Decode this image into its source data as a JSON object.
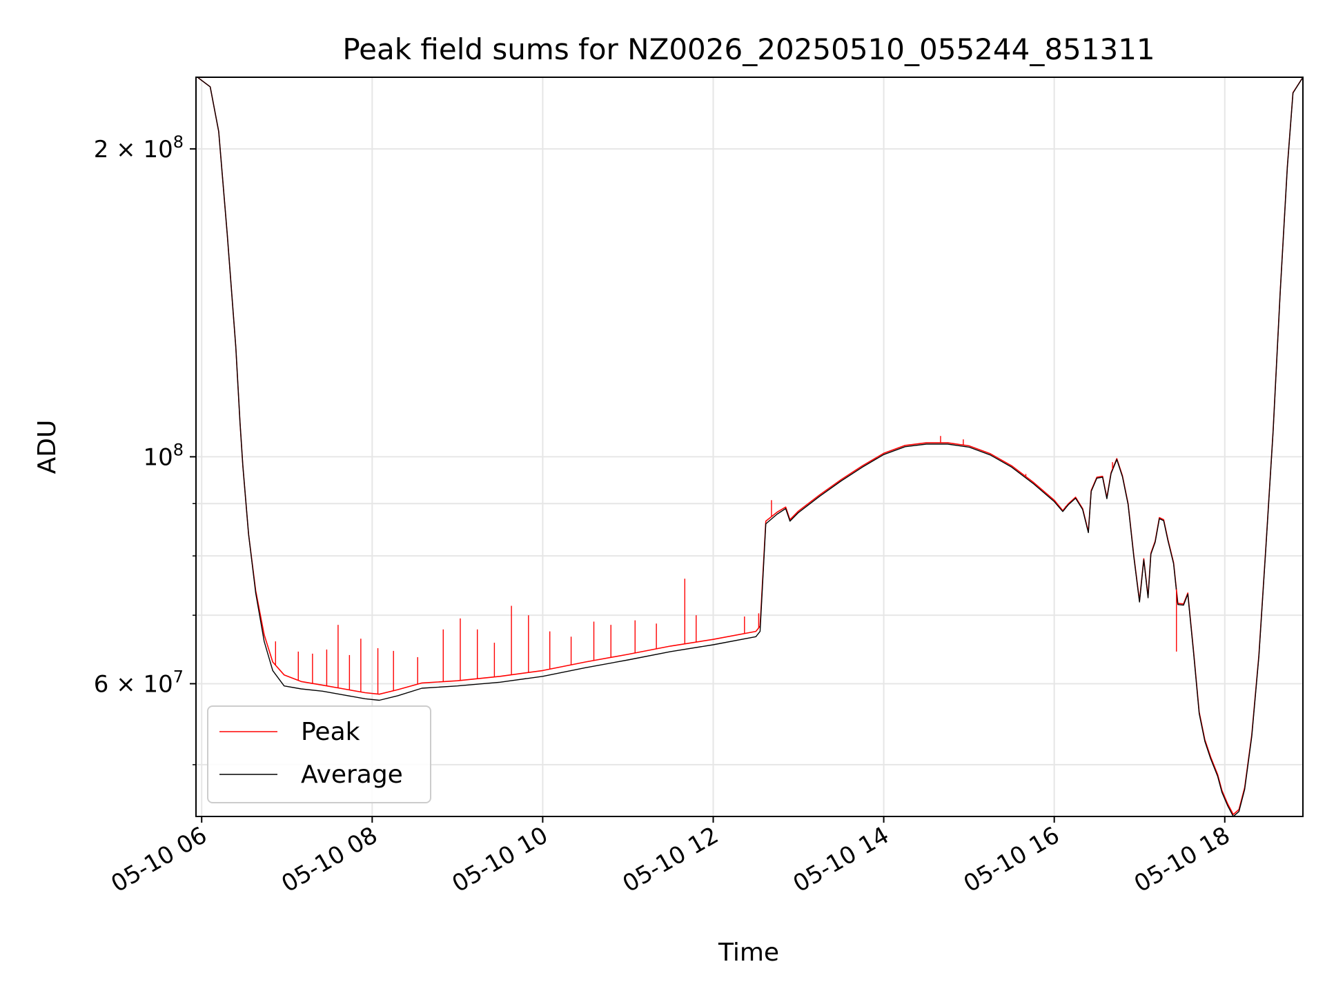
{
  "chart_data": {
    "type": "line",
    "title": "Peak field sums for NZ0026_20250510_055244_851311",
    "xlabel": "Time",
    "ylabel": "ADU",
    "x_ticks": [
      "05-10 06",
      "05-10 08",
      "05-10 10",
      "05-10 12",
      "05-10 14",
      "05-10 16",
      "05-10 18"
    ],
    "y_ticks": [
      {
        "value": 60000000,
        "label_base": "6 × 10",
        "label_exp": "7"
      },
      {
        "value": 100000000,
        "label_base": "10",
        "label_exp": "8"
      },
      {
        "value": 200000000,
        "label_base": "2 × 10",
        "label_exp": "8"
      }
    ],
    "y_scale": "log",
    "xlim": [
      "2025-05-10 05:56",
      "2025-05-10 18:55"
    ],
    "ylim": [
      44500000,
      235000000
    ],
    "grid": true,
    "legend_position": "lower-left",
    "series": [
      {
        "name": "Peak",
        "color": "#ff0000",
        "points": [
          [
            "05:57",
            235000000
          ],
          [
            "06:06",
            230000000
          ],
          [
            "06:12",
            208000000
          ],
          [
            "06:18",
            165000000
          ],
          [
            "06:24",
            128000000
          ],
          [
            "06:27",
            108000000
          ],
          [
            "06:29",
            98000000
          ],
          [
            "06:33",
            84000000
          ],
          [
            "06:38",
            74000000
          ],
          [
            "06:44",
            67000000
          ],
          [
            "06:50",
            63000000
          ],
          [
            "06:58",
            61200000
          ],
          [
            "07:10",
            60300000
          ],
          [
            "07:25",
            59800000
          ],
          [
            "07:40",
            59300000
          ],
          [
            "07:55",
            58800000
          ],
          [
            "08:05",
            58600000
          ],
          [
            "08:18",
            59200000
          ],
          [
            "08:35",
            60100000
          ],
          [
            "09:00",
            60400000
          ],
          [
            "09:30",
            61000000
          ],
          [
            "10:00",
            61800000
          ],
          [
            "10:30",
            63000000
          ],
          [
            "11:00",
            64100000
          ],
          [
            "11:30",
            65300000
          ],
          [
            "12:00",
            66300000
          ],
          [
            "12:30",
            67500000
          ],
          [
            "12:33",
            68300000
          ],
          [
            "12:37",
            86500000
          ],
          [
            "12:45",
            88300000
          ],
          [
            "12:51",
            89300000
          ],
          [
            "12:54",
            86800000
          ],
          [
            "13:00",
            88500000
          ],
          [
            "13:15",
            91800000
          ],
          [
            "13:30",
            95000000
          ],
          [
            "13:45",
            98000000
          ],
          [
            "14:00",
            100800000
          ],
          [
            "14:15",
            102600000
          ],
          [
            "14:30",
            103200000
          ],
          [
            "14:45",
            103200000
          ],
          [
            "15:00",
            102500000
          ],
          [
            "15:15",
            100700000
          ],
          [
            "15:30",
            98000000
          ],
          [
            "15:45",
            94500000
          ],
          [
            "16:00",
            90700000
          ],
          [
            "16:06",
            88600000
          ],
          [
            "16:10",
            90000000
          ],
          [
            "16:15",
            91300000
          ],
          [
            "16:20",
            89000000
          ],
          [
            "16:24",
            84500000
          ],
          [
            "16:26",
            92700000
          ],
          [
            "16:30",
            95500000
          ],
          [
            "16:34",
            95700000
          ],
          [
            "16:37",
            91200000
          ],
          [
            "16:40",
            96500000
          ],
          [
            "16:44",
            99600000
          ],
          [
            "16:48",
            95800000
          ],
          [
            "16:52",
            90000000
          ],
          [
            "16:56",
            80000000
          ],
          [
            "17:00",
            72300000
          ],
          [
            "17:03",
            79500000
          ],
          [
            "17:06",
            73000000
          ],
          [
            "17:08",
            80500000
          ],
          [
            "17:11",
            82700000
          ],
          [
            "17:14",
            87200000
          ],
          [
            "17:17",
            86800000
          ],
          [
            "17:20",
            83000000
          ],
          [
            "17:24",
            78800000
          ],
          [
            "17:27",
            71900000
          ],
          [
            "17:31",
            71800000
          ],
          [
            "17:34",
            73600000
          ],
          [
            "17:38",
            64600000
          ],
          [
            "17:42",
            56300000
          ],
          [
            "17:46",
            52900000
          ],
          [
            "17:50",
            50900000
          ],
          [
            "17:55",
            48900000
          ],
          [
            "17:58",
            47200000
          ],
          [
            "18:02",
            45800000
          ],
          [
            "18:06",
            44700000
          ],
          [
            "18:10",
            45200000
          ],
          [
            "18:14",
            47500000
          ],
          [
            "18:19",
            53500000
          ],
          [
            "18:24",
            64000000
          ],
          [
            "18:29",
            82000000
          ],
          [
            "18:34",
            106000000
          ],
          [
            "18:39",
            145000000
          ],
          [
            "18:44",
            192000000
          ],
          [
            "18:48",
            227000000
          ],
          [
            "18:55",
            235000000
          ]
        ]
      },
      {
        "name": "Average",
        "color": "#000000",
        "points": [
          [
            "05:57",
            235000000
          ],
          [
            "06:06",
            230000000
          ],
          [
            "06:12",
            208000000
          ],
          [
            "06:18",
            165000000
          ],
          [
            "06:24",
            128000000
          ],
          [
            "06:27",
            108000000
          ],
          [
            "06:29",
            98000000
          ],
          [
            "06:33",
            84000000
          ],
          [
            "06:38",
            73600000
          ],
          [
            "06:44",
            66000000
          ],
          [
            "06:50",
            61800000
          ],
          [
            "06:58",
            59700000
          ],
          [
            "07:10",
            59300000
          ],
          [
            "07:25",
            59000000
          ],
          [
            "07:40",
            58500000
          ],
          [
            "07:55",
            58000000
          ],
          [
            "08:05",
            57800000
          ],
          [
            "08:18",
            58400000
          ],
          [
            "08:35",
            59400000
          ],
          [
            "09:00",
            59700000
          ],
          [
            "09:30",
            60200000
          ],
          [
            "10:00",
            61000000
          ],
          [
            "10:30",
            62200000
          ],
          [
            "11:00",
            63300000
          ],
          [
            "11:30",
            64500000
          ],
          [
            "12:00",
            65500000
          ],
          [
            "12:30",
            66700000
          ],
          [
            "12:33",
            67500000
          ],
          [
            "12:37",
            86000000
          ],
          [
            "12:45",
            87900000
          ],
          [
            "12:51",
            89000000
          ],
          [
            "12:54",
            86500000
          ],
          [
            "13:00",
            88200000
          ],
          [
            "13:15",
            91500000
          ],
          [
            "13:30",
            94700000
          ],
          [
            "13:45",
            97700000
          ],
          [
            "14:00",
            100500000
          ],
          [
            "14:15",
            102300000
          ],
          [
            "14:30",
            102900000
          ],
          [
            "14:45",
            102900000
          ],
          [
            "15:00",
            102200000
          ],
          [
            "15:15",
            100400000
          ],
          [
            "15:30",
            97700000
          ],
          [
            "15:45",
            94200000
          ],
          [
            "16:00",
            90400000
          ],
          [
            "16:06",
            88400000
          ],
          [
            "16:10",
            89800000
          ],
          [
            "16:15",
            91100000
          ],
          [
            "16:20",
            88800000
          ],
          [
            "16:24",
            84300000
          ],
          [
            "16:26",
            92500000
          ],
          [
            "16:30",
            95300000
          ],
          [
            "16:34",
            95500000
          ],
          [
            "16:37",
            91000000
          ],
          [
            "16:40",
            96300000
          ],
          [
            "16:44",
            99400000
          ],
          [
            "16:48",
            95600000
          ],
          [
            "16:52",
            89800000
          ],
          [
            "16:56",
            79800000
          ],
          [
            "17:00",
            72100000
          ],
          [
            "17:03",
            79300000
          ],
          [
            "17:06",
            72800000
          ],
          [
            "17:08",
            80300000
          ],
          [
            "17:11",
            82500000
          ],
          [
            "17:14",
            87000000
          ],
          [
            "17:17",
            86600000
          ],
          [
            "17:20",
            82800000
          ],
          [
            "17:24",
            78600000
          ],
          [
            "17:27",
            71700000
          ],
          [
            "17:31",
            71600000
          ],
          [
            "17:34",
            73400000
          ],
          [
            "17:38",
            64400000
          ],
          [
            "17:42",
            56100000
          ],
          [
            "17:46",
            52700000
          ],
          [
            "17:50",
            50700000
          ],
          [
            "17:55",
            48700000
          ],
          [
            "17:58",
            47000000
          ],
          [
            "18:02",
            45600000
          ],
          [
            "18:06",
            44500000
          ],
          [
            "18:10",
            45000000
          ],
          [
            "18:14",
            47300000
          ],
          [
            "18:19",
            53300000
          ],
          [
            "18:24",
            63800000
          ],
          [
            "18:29",
            81800000
          ],
          [
            "18:34",
            105800000
          ],
          [
            "18:39",
            144800000
          ],
          [
            "18:44",
            191800000
          ],
          [
            "18:48",
            226800000
          ],
          [
            "18:55",
            235000000
          ]
        ]
      }
    ],
    "spikes": [
      [
        "06:52",
        66000000
      ],
      [
        "07:08",
        64500000
      ],
      [
        "07:18",
        64200000
      ],
      [
        "07:28",
        64800000
      ],
      [
        "07:36",
        68500000
      ],
      [
        "07:44",
        64000000
      ],
      [
        "07:52",
        66400000
      ],
      [
        "08:04",
        65000000
      ],
      [
        "08:15",
        64600000
      ],
      [
        "08:32",
        63700000
      ],
      [
        "08:50",
        67800000
      ],
      [
        "09:02",
        69500000
      ],
      [
        "09:14",
        67800000
      ],
      [
        "09:26",
        65800000
      ],
      [
        "09:38",
        71500000
      ],
      [
        "09:50",
        70000000
      ],
      [
        "10:05",
        67500000
      ],
      [
        "10:20",
        66700000
      ],
      [
        "10:36",
        69000000
      ],
      [
        "10:48",
        68500000
      ],
      [
        "11:05",
        69200000
      ],
      [
        "11:20",
        68700000
      ],
      [
        "11:40",
        76000000
      ],
      [
        "11:48",
        70000000
      ],
      [
        "12:22",
        69800000
      ],
      [
        "12:32",
        70300000
      ],
      [
        "12:41",
        90700000
      ],
      [
        "14:40",
        104800000
      ],
      [
        "14:56",
        104000000
      ],
      [
        "15:40",
        96200000
      ],
      [
        "16:08",
        89500000
      ],
      [
        "16:41",
        98800000
      ],
      [
        "17:26",
        64500000
      ]
    ]
  }
}
